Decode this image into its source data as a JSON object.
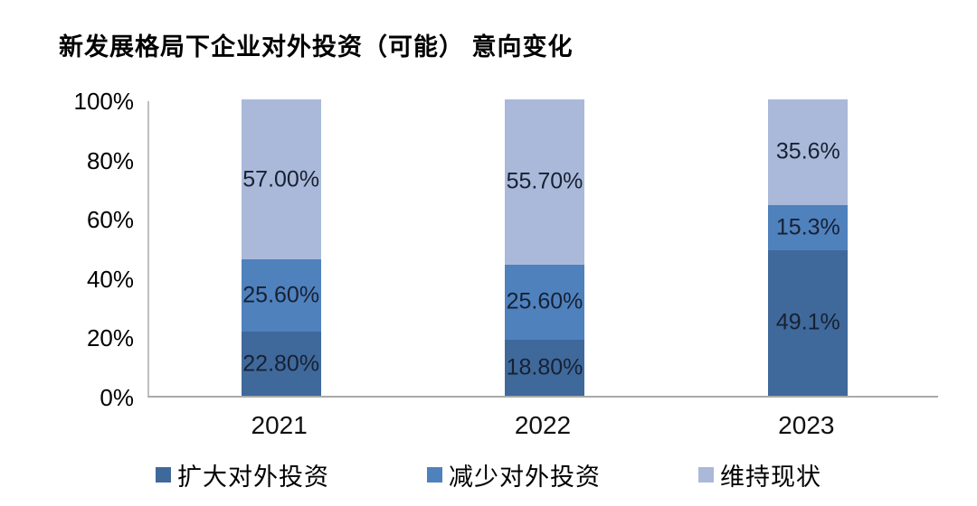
{
  "chart_data": {
    "type": "bar",
    "stacked": true,
    "percent_stacked": true,
    "title": "新发展格局下企业对外投资（可能） 意向变化",
    "categories": [
      "2021",
      "2022",
      "2023"
    ],
    "series": [
      {
        "name": "扩大对外投资",
        "color": "#3F699B",
        "values": [
          22.8,
          18.8,
          49.1
        ],
        "labels": [
          "22.80%",
          "18.80%",
          "49.1%"
        ]
      },
      {
        "name": "减少对外投资",
        "color": "#4F81BD",
        "values": [
          25.6,
          25.6,
          15.3
        ],
        "labels": [
          "25.60%",
          "25.60%",
          "15.3%"
        ]
      },
      {
        "name": "维持现状",
        "color": "#AAB9D9",
        "values": [
          57.0,
          55.7,
          35.6
        ],
        "labels": [
          "57.00%",
          "55.70%",
          "35.6%"
        ]
      }
    ],
    "yticks": [
      "0%",
      "20%",
      "40%",
      "60%",
      "80%",
      "100%"
    ],
    "ylim": [
      0,
      100
    ],
    "ylabel": "",
    "xlabel": "",
    "grid": false,
    "legend_position": "bottom",
    "axis_color": "#BFBFBF",
    "label_color": "#172133"
  }
}
